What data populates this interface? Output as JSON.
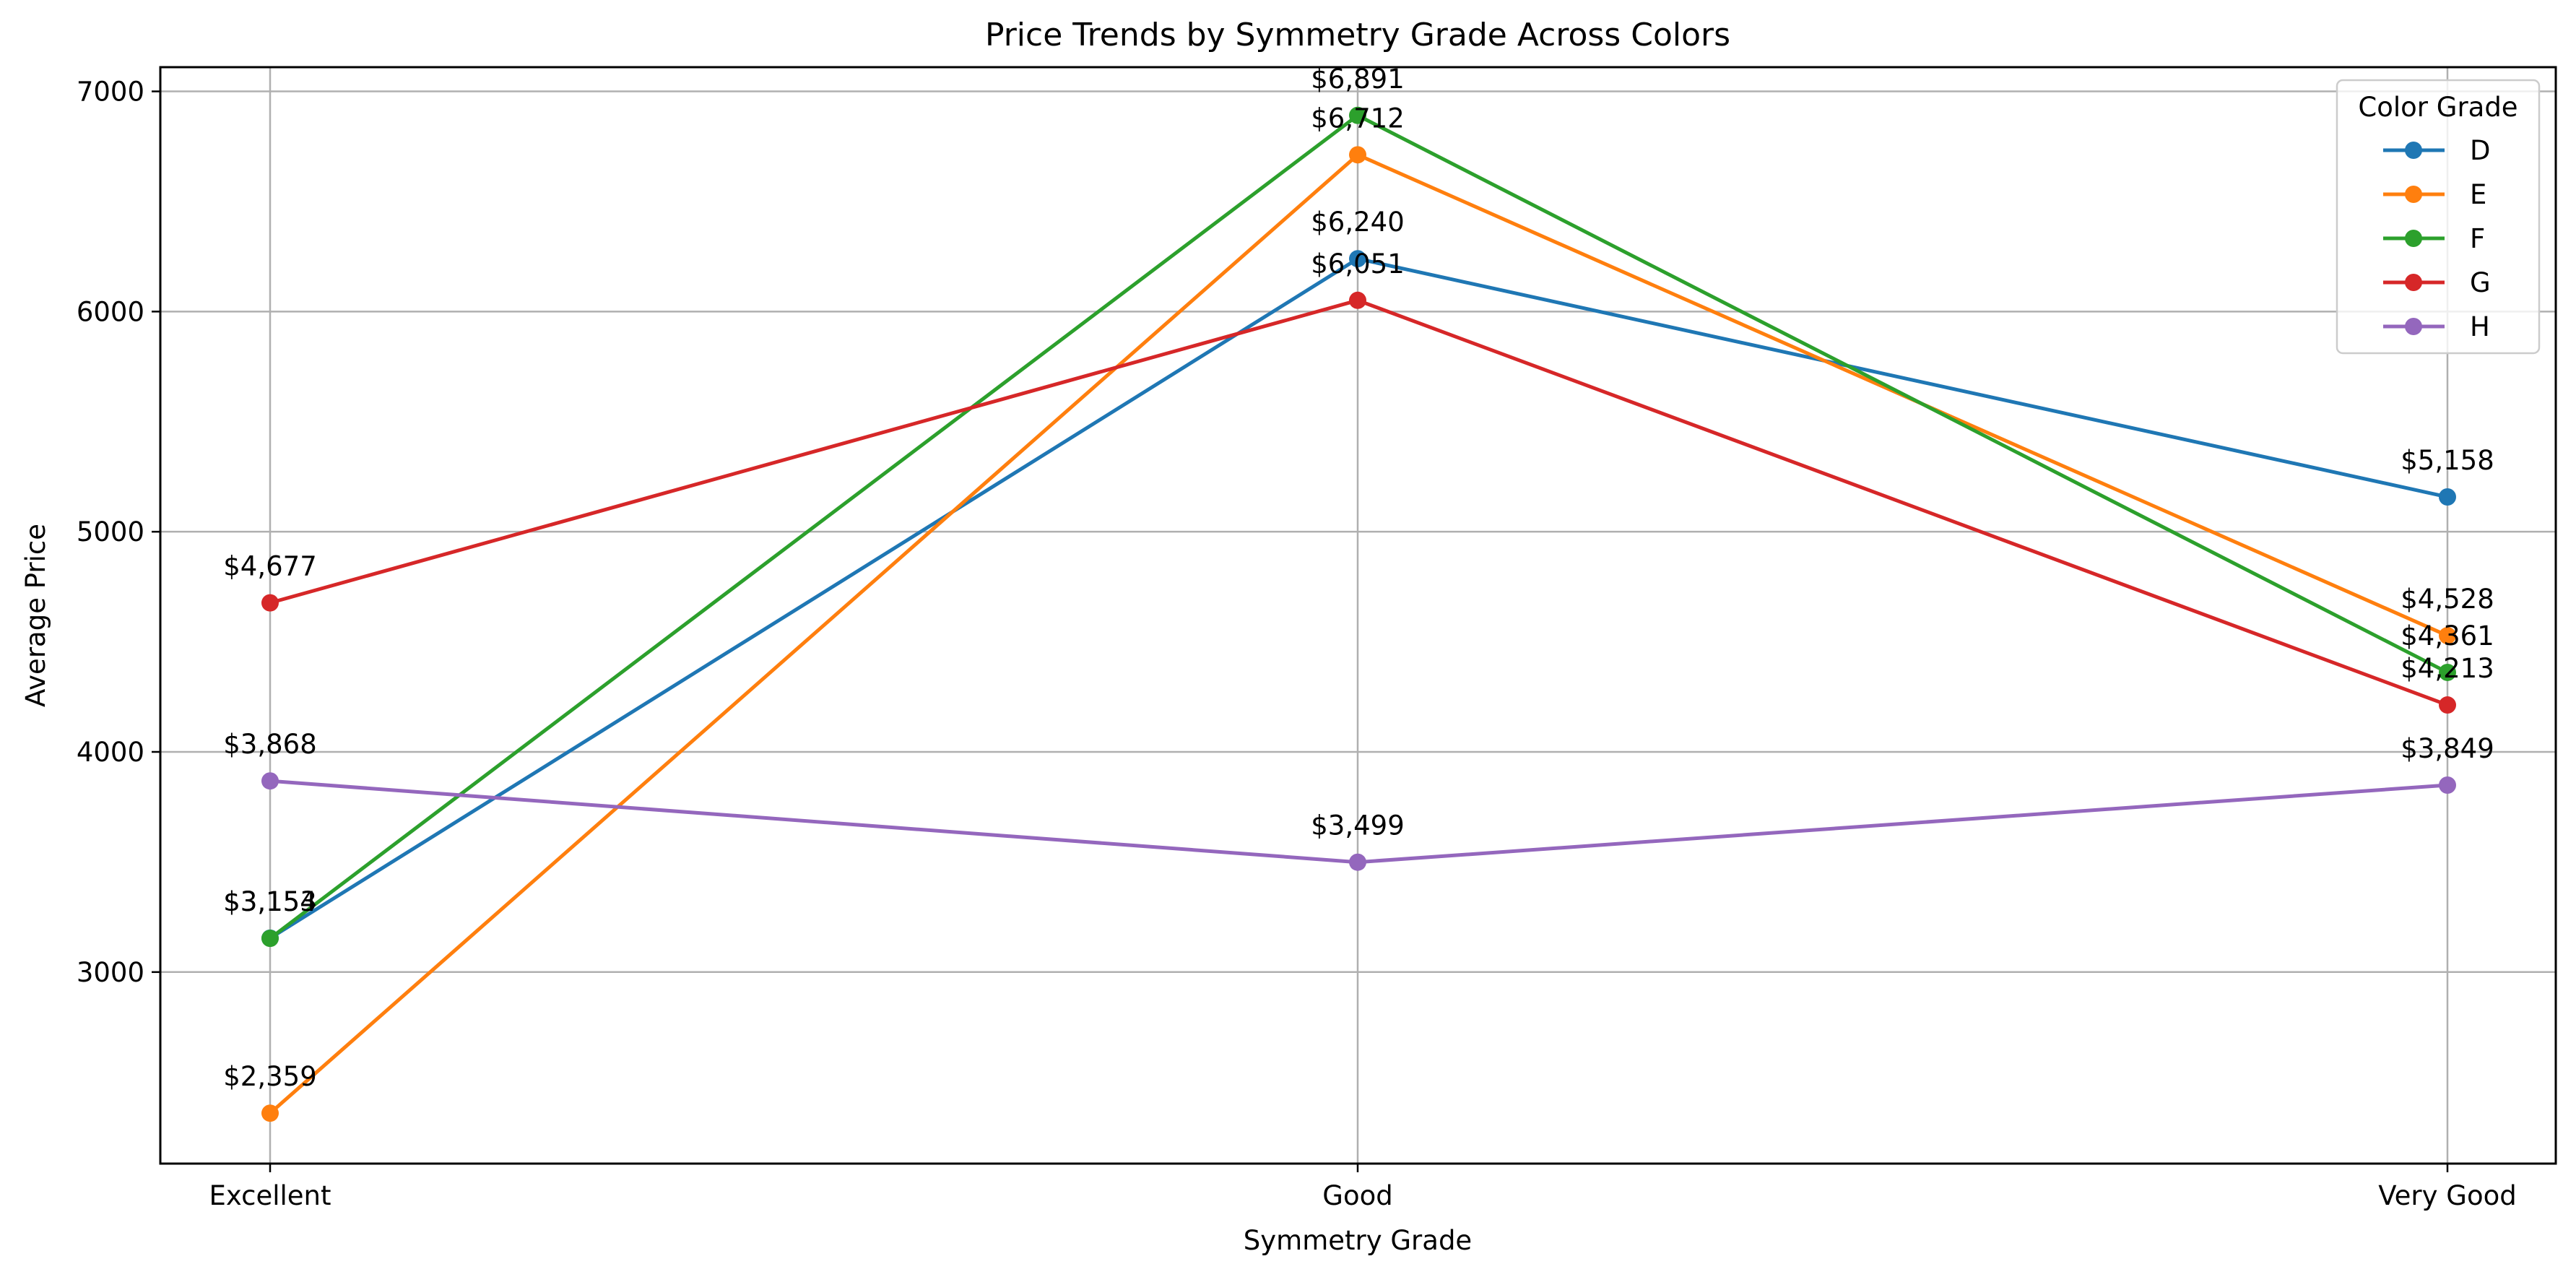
{
  "chart_data": {
    "type": "line",
    "title": "Price Trends by Symmetry Grade Across Colors",
    "xlabel": "Symmetry Grade",
    "ylabel": "Average Price",
    "categories": [
      "Excellent",
      "Good",
      "Very Good"
    ],
    "ylim": [
      2130,
      7110
    ],
    "yticks": [
      3000,
      4000,
      5000,
      6000,
      7000
    ],
    "grid": true,
    "legend": {
      "title": "Color Grade",
      "placement": "top-right"
    },
    "series": [
      {
        "name": "D",
        "color": "#1f77b4",
        "values": [
          3154,
          6240,
          5158
        ],
        "labels": [
          "$3,154",
          "$6,240",
          "$5,158"
        ]
      },
      {
        "name": "E",
        "color": "#ff7f0e",
        "values": [
          2359,
          6712,
          4528
        ],
        "labels": [
          "$2,359",
          "$6,712",
          "$4,528"
        ]
      },
      {
        "name": "F",
        "color": "#2ca02c",
        "values": [
          3153,
          6891,
          4361
        ],
        "labels": [
          "$3,153",
          "$6,891",
          "$4,361"
        ]
      },
      {
        "name": "G",
        "color": "#d62728",
        "values": [
          4677,
          6051,
          4213
        ],
        "labels": [
          "$4,677",
          "$6,051",
          "$4,213"
        ]
      },
      {
        "name": "H",
        "color": "#9467bd",
        "values": [
          3868,
          3499,
          3849
        ],
        "labels": [
          "$3,868",
          "$3,499",
          "$3,849"
        ]
      }
    ]
  }
}
